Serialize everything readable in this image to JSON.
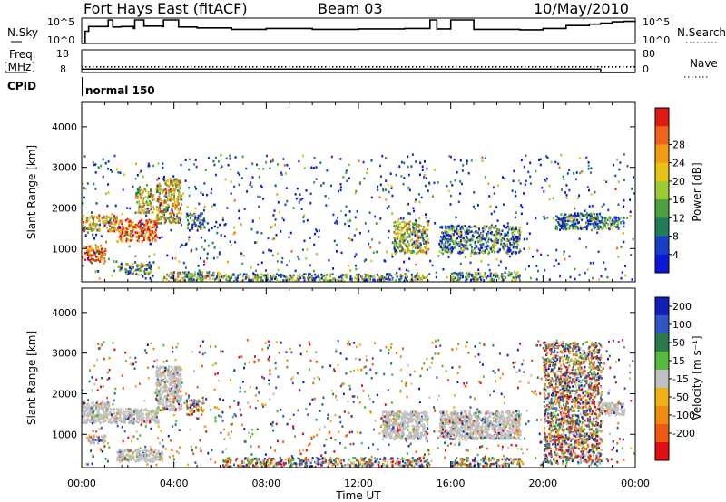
{
  "header": {
    "station": "Fort Hays East (fitACF)",
    "beam": "Beam 03",
    "date": "10/May/2010"
  },
  "panels": {
    "nsky": {
      "label": "N.Sky",
      "tick_top": "10^5",
      "tick_bottom": "10^0",
      "right_label": "N.Search",
      "right_tick_top": "10^5",
      "right_tick_bottom": "10^0"
    },
    "freq": {
      "label_top": "Freq.",
      "label_bottom": "[MHz]",
      "tick_top": "18",
      "tick_bottom": "8",
      "right_label": "Nave",
      "right_tick_top": "80",
      "right_tick_bottom": "0"
    },
    "cpid": {
      "label": "CPID",
      "mode": "normal 150"
    }
  },
  "colors": {
    "power": [
      "#0b18d8",
      "#173fc8",
      "#1f7d5a",
      "#4aa23e",
      "#9acd32",
      "#e8c215",
      "#f39a12",
      "#f0641a",
      "#e21b12"
    ],
    "velocity": [
      "#1121b8",
      "#2f56c9",
      "#2c7a4a",
      "#55bb3a",
      "#c0c0c0",
      "#f0b013",
      "#f08a10",
      "#ee5a10",
      "#e00f12"
    ],
    "ground_scatter": "#c0c0c0"
  },
  "chart_data": [
    {
      "type": "heatmap",
      "name": "power",
      "xlabel": "",
      "ylabel": "Slant Range [km]",
      "x_ticks": [
        "00:00",
        "04:00",
        "08:00",
        "12:00",
        "16:00",
        "20:00",
        "00:00"
      ],
      "y_ticks": [
        1000,
        2000,
        3000,
        4000
      ],
      "xlim": [
        0,
        24
      ],
      "ylim": [
        180,
        4600
      ],
      "colorbar": {
        "label": "Power [dB]",
        "ticks": [
          4,
          8,
          12,
          16,
          20,
          24,
          28
        ],
        "range": [
          0,
          32
        ]
      },
      "regions": [
        {
          "t": [
            0.0,
            1.0
          ],
          "r": [
            700,
            1100
          ],
          "level": 0.85
        },
        {
          "t": [
            0.0,
            1.5
          ],
          "r": [
            1450,
            1850
          ],
          "level": 0.65
        },
        {
          "t": [
            1.5,
            3.3
          ],
          "r": [
            1200,
            1750
          ],
          "level": 0.9
        },
        {
          "t": [
            2.3,
            3.1
          ],
          "r": [
            1900,
            2500
          ],
          "level": 0.55
        },
        {
          "t": [
            3.2,
            4.3
          ],
          "r": [
            1650,
            2750
          ],
          "level": 0.6
        },
        {
          "t": [
            4.5,
            5.3
          ],
          "r": [
            1500,
            1900
          ],
          "level": 0.3
        },
        {
          "t": [
            1.5,
            3.0
          ],
          "r": [
            380,
            650
          ],
          "level": 0.4
        },
        {
          "t": [
            3.5,
            6.0
          ],
          "r": [
            200,
            450
          ],
          "level": 0.45
        },
        {
          "t": [
            6.0,
            15.0
          ],
          "r": [
            200,
            400
          ],
          "level": 0.35
        },
        {
          "t": [
            13.5,
            15.0
          ],
          "r": [
            900,
            1700
          ],
          "level": 0.5
        },
        {
          "t": [
            15.5,
            19.0
          ],
          "r": [
            900,
            1600
          ],
          "level": 0.3
        },
        {
          "t": [
            16.0,
            19.0
          ],
          "r": [
            200,
            450
          ],
          "level": 0.35
        },
        {
          "t": [
            20.5,
            22.5
          ],
          "r": [
            1500,
            1900
          ],
          "level": 0.3
        },
        {
          "t": [
            22.0,
            23.5
          ],
          "r": [
            1500,
            1800
          ],
          "level": 0.3
        }
      ]
    },
    {
      "type": "heatmap",
      "name": "velocity",
      "xlabel": "Time UT",
      "ylabel": "Slant Range [km]",
      "x_ticks": [
        "00:00",
        "04:00",
        "08:00",
        "12:00",
        "16:00",
        "20:00",
        "00:00"
      ],
      "y_ticks": [
        1000,
        2000,
        3000,
        4000
      ],
      "xlim": [
        0,
        24
      ],
      "ylim": [
        180,
        4600
      ],
      "colorbar": {
        "label": "Velocity [m s⁻¹]",
        "ticks": [
          200,
          100,
          50,
          15,
          -15,
          -50,
          -100,
          -200
        ]
      },
      "regions": [
        {
          "t": [
            0.0,
            1.2
          ],
          "r": [
            1300,
            1850
          ],
          "kind": "ground"
        },
        {
          "t": [
            1.2,
            3.3
          ],
          "r": [
            1300,
            1650
          ],
          "kind": "ground"
        },
        {
          "t": [
            3.2,
            4.3
          ],
          "r": [
            1600,
            2700
          ],
          "kind": "ground"
        },
        {
          "t": [
            0.2,
            1.0
          ],
          "r": [
            800,
            1000
          ],
          "kind": "ground"
        },
        {
          "t": [
            1.5,
            3.5
          ],
          "r": [
            350,
            650
          ],
          "kind": "ground"
        },
        {
          "t": [
            4.5,
            5.3
          ],
          "r": [
            1500,
            1900
          ],
          "kind": "mixed"
        },
        {
          "t": [
            6.0,
            15.0
          ],
          "r": [
            200,
            450
          ],
          "kind": "mixed"
        },
        {
          "t": [
            13.0,
            15.0
          ],
          "r": [
            900,
            1600
          ],
          "kind": "ground"
        },
        {
          "t": [
            15.5,
            19.0
          ],
          "r": [
            900,
            1600
          ],
          "kind": "ground"
        },
        {
          "t": [
            16.0,
            19.0
          ],
          "r": [
            200,
            450
          ],
          "kind": "mixed"
        },
        {
          "t": [
            20.0,
            22.5
          ],
          "r": [
            300,
            3300
          ],
          "kind": "mixed"
        },
        {
          "t": [
            22.5,
            23.5
          ],
          "r": [
            1500,
            1800
          ],
          "kind": "ground"
        }
      ]
    }
  ],
  "nsky_trace": {
    "t": [
      0.0,
      0.15,
      0.3,
      1.0,
      1.15,
      1.35,
      1.7,
      2.25,
      2.3,
      2.65,
      2.7,
      3.5,
      3.55,
      4.0,
      4.2,
      5.0,
      6.5,
      8.0,
      10.0,
      12.0,
      14.0,
      14.6,
      15.1,
      15.3,
      15.4,
      15.9,
      16.0,
      17.0,
      18.0,
      19.0,
      20.0,
      21.0,
      22.0,
      22.5,
      23.0,
      23.5,
      24.0
    ],
    "v": [
      0.0,
      2.6,
      3.6,
      3.6,
      5.0,
      3.5,
      3.6,
      3.2,
      5.0,
      5.0,
      3.7,
      3.6,
      5.0,
      5.0,
      3.5,
      3.3,
      3.0,
      3.2,
      3.0,
      3.1,
      3.2,
      3.2,
      5.0,
      5.0,
      3.1,
      3.1,
      5.0,
      3.0,
      3.0,
      2.9,
      3.2,
      3.8,
      4.1,
      4.3,
      4.6,
      4.7,
      4.8
    ]
  },
  "freq_nave": {
    "freq_mhz": 10.5,
    "nave": {
      "t": [
        0.0,
        22.5,
        22.5,
        24.0
      ],
      "v": [
        12,
        12,
        0,
        0
      ]
    }
  }
}
